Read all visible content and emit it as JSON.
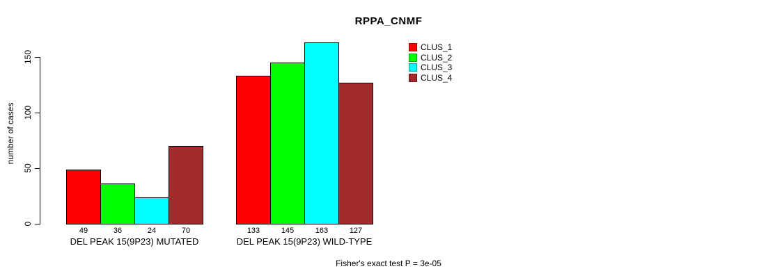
{
  "chart_data": {
    "type": "bar",
    "title": "RPPA_CNMF",
    "ylabel": "number of cases",
    "xlabel": "",
    "ylim": [
      0,
      150
    ],
    "yticks": [
      0,
      50,
      100,
      150
    ],
    "grid": false,
    "legend_position": "top-right",
    "categories": [
      "DEL PEAK 15(9P23) MUTATED",
      "DEL PEAK 15(9P23) WILD-TYPE"
    ],
    "series": [
      {
        "name": "CLUS_1",
        "color": "#FF0000",
        "values": [
          49,
          133
        ]
      },
      {
        "name": "CLUS_2",
        "color": "#00FF00",
        "values": [
          36,
          145
        ]
      },
      {
        "name": "CLUS_3",
        "color": "#00FFFF",
        "values": [
          24,
          163
        ]
      },
      {
        "name": "CLUS_4",
        "color": "#A52A2A",
        "values": [
          70,
          127
        ]
      }
    ],
    "bar_value_labels": [
      [
        49,
        36,
        24,
        70
      ],
      [
        133,
        145,
        163,
        127
      ]
    ],
    "footer": "Fisher's exact test P = 3e-05"
  }
}
